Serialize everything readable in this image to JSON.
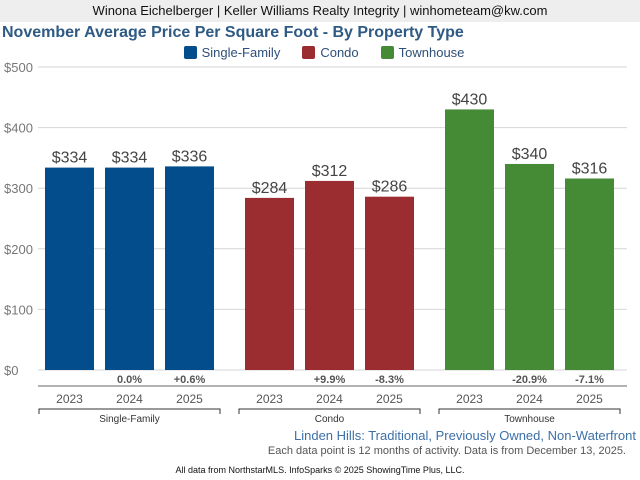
{
  "header": {
    "agent_line": "Winona Eichelberger | Keller Williams Realty Integrity | winhometeam@kw.com"
  },
  "chart_data": {
    "type": "bar",
    "title": "November Average Price Per Square Foot - By Property Type",
    "xlabel": "",
    "ylabel": "",
    "ylim": [
      0,
      500
    ],
    "yticks": [
      0,
      100,
      200,
      300,
      400,
      500
    ],
    "ytick_labels": [
      "$0",
      "$100",
      "$200",
      "$300",
      "$400",
      "$500"
    ],
    "grid": true,
    "legend_position": "top-center",
    "legend": [
      "Single-Family",
      "Condo",
      "Townhouse"
    ],
    "groups": [
      {
        "name": "Single-Family",
        "color": "#034d8c",
        "categories": [
          "2023",
          "2024",
          "2025"
        ],
        "values": [
          334,
          334,
          336
        ],
        "value_labels": [
          "$334",
          "$334",
          "$336"
        ],
        "changes": [
          "",
          "0.0%",
          "+0.6%"
        ]
      },
      {
        "name": "Condo",
        "color": "#9b2d30",
        "categories": [
          "2023",
          "2024",
          "2025"
        ],
        "values": [
          284,
          312,
          286
        ],
        "value_labels": [
          "$284",
          "$312",
          "$286"
        ],
        "changes": [
          "",
          "+9.9%",
          "-8.3%"
        ]
      },
      {
        "name": "Townhouse",
        "color": "#458b36",
        "categories": [
          "2023",
          "2024",
          "2025"
        ],
        "values": [
          430,
          340,
          316
        ],
        "value_labels": [
          "$430",
          "$340",
          "$316"
        ],
        "changes": [
          "",
          "-20.9%",
          "-7.1%"
        ]
      }
    ]
  },
  "footer": {
    "area_description": "Linden Hills: Traditional, Previously Owned, Non-Waterfront",
    "data_note": "Each data point is 12 months of activity. Data is from December 13, 2025.",
    "source": "All data from NorthstarMLS. InfoSparks © 2025 ShowingTime Plus, LLC."
  }
}
